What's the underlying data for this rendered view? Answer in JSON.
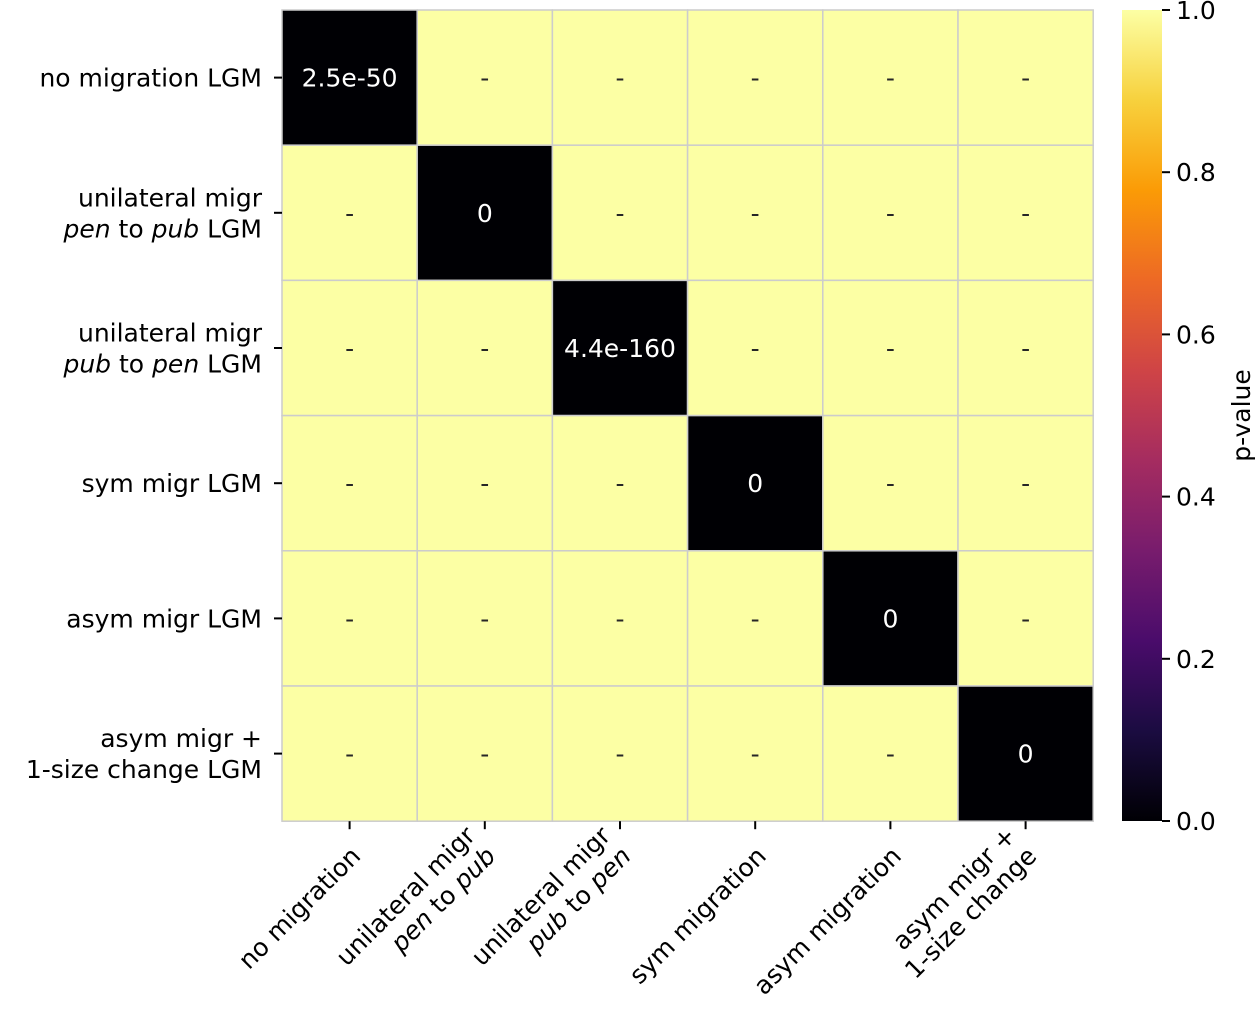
{
  "chart_data": {
    "type": "heatmap",
    "rows": [
      {
        "lines": [
          [
            {
              "t": "no migration LGM",
              "i": false
            }
          ]
        ]
      },
      {
        "lines": [
          [
            {
              "t": "unilateral migr",
              "i": false
            }
          ],
          [
            {
              "t": "pen",
              "i": true
            },
            {
              "t": " to ",
              "i": false
            },
            {
              "t": "pub",
              "i": true
            },
            {
              "t": " LGM",
              "i": false
            }
          ]
        ]
      },
      {
        "lines": [
          [
            {
              "t": "unilateral migr",
              "i": false
            }
          ],
          [
            {
              "t": "pub",
              "i": true
            },
            {
              "t": " to ",
              "i": false
            },
            {
              "t": "pen",
              "i": true
            },
            {
              "t": " LGM",
              "i": false
            }
          ]
        ]
      },
      {
        "lines": [
          [
            {
              "t": "sym migr LGM",
              "i": false
            }
          ]
        ]
      },
      {
        "lines": [
          [
            {
              "t": "asym migr LGM",
              "i": false
            }
          ]
        ]
      },
      {
        "lines": [
          [
            {
              "t": "asym migr +",
              "i": false
            }
          ],
          [
            {
              "t": "1-size change LGM",
              "i": false
            }
          ]
        ]
      }
    ],
    "columns": [
      {
        "lines": [
          [
            {
              "t": "no migration",
              "i": false
            }
          ]
        ]
      },
      {
        "lines": [
          [
            {
              "t": "unilateral migr",
              "i": false
            }
          ],
          [
            {
              "t": "pen",
              "i": true
            },
            {
              "t": " to ",
              "i": false
            },
            {
              "t": "pub",
              "i": true
            }
          ]
        ]
      },
      {
        "lines": [
          [
            {
              "t": "unilateral migr",
              "i": false
            }
          ],
          [
            {
              "t": "pub",
              "i": true
            },
            {
              "t": " to ",
              "i": false
            },
            {
              "t": "pen",
              "i": true
            }
          ]
        ]
      },
      {
        "lines": [
          [
            {
              "t": "sym migration",
              "i": false
            }
          ]
        ]
      },
      {
        "lines": [
          [
            {
              "t": "asym migration",
              "i": false
            }
          ]
        ]
      },
      {
        "lines": [
          [
            {
              "t": "asym migr +",
              "i": false
            }
          ],
          [
            {
              "t": "1-size change",
              "i": false
            }
          ]
        ]
      }
    ],
    "values": [
      [
        0,
        1,
        1,
        1,
        1,
        1
      ],
      [
        1,
        0,
        1,
        1,
        1,
        1
      ],
      [
        1,
        1,
        0,
        1,
        1,
        1
      ],
      [
        1,
        1,
        1,
        0,
        1,
        1
      ],
      [
        1,
        1,
        1,
        1,
        0,
        1
      ],
      [
        1,
        1,
        1,
        1,
        1,
        0
      ]
    ],
    "annotations": [
      [
        "2.5e-50",
        "-",
        "-",
        "-",
        "-",
        "-"
      ],
      [
        "-",
        "0",
        "-",
        "-",
        "-",
        "-"
      ],
      [
        "-",
        "-",
        "4.4e-160",
        "-",
        "-",
        "-"
      ],
      [
        "-",
        "-",
        "-",
        "0",
        "-",
        "-"
      ],
      [
        "-",
        "-",
        "-",
        "-",
        "0",
        "-"
      ],
      [
        "-",
        "-",
        "-",
        "-",
        "-",
        "0"
      ]
    ],
    "colorbar": {
      "label": "p-value",
      "range": [
        0.0,
        1.0
      ],
      "ticks": [
        "0.0",
        "0.2",
        "0.4",
        "0.6",
        "0.8",
        "1.0"
      ],
      "colormap": "inferno",
      "stops": [
        "#000004",
        "#1b0c41",
        "#4a0c6b",
        "#781c6d",
        "#a52c60",
        "#cf4446",
        "#ed6925",
        "#fb9b06",
        "#f7d13d",
        "#fcffa4"
      ]
    },
    "grid_line_color": "#cccccc"
  }
}
